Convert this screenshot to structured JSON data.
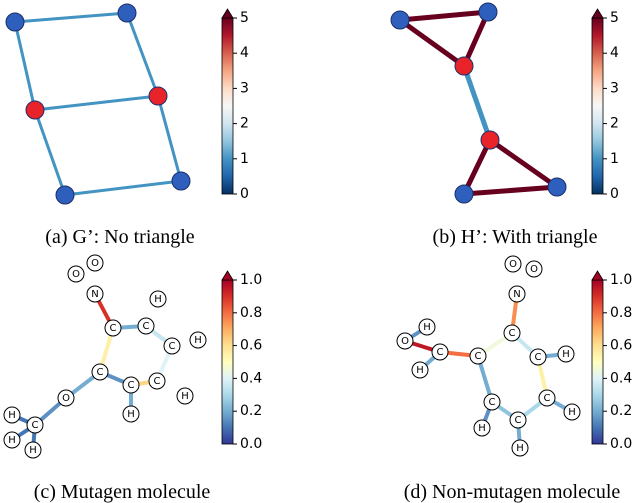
{
  "panels": [
    {
      "caption": "(a) G’: No triangle",
      "colorbar": {
        "range": [
          0,
          5
        ],
        "ticks": [
          0,
          1,
          2,
          3,
          4,
          5
        ],
        "colors": [
          "#053061",
          "#2166ac",
          "#4393c3",
          "#92c5de",
          "#d1e5f0",
          "#f7f7f7",
          "#fddbc7",
          "#f4a582",
          "#d6604d",
          "#b2182b",
          "#67001f"
        ]
      },
      "nodes": [
        {
          "color": "#2f5fbd"
        },
        {
          "color": "#2f5fbd"
        },
        {
          "color": "#e8242a"
        },
        {
          "color": "#e8242a"
        },
        {
          "color": "#2f5fbd"
        },
        {
          "color": "#2f5fbd"
        }
      ],
      "edges": [
        {
          "value": 1
        },
        {
          "value": 1
        },
        {
          "value": 1
        },
        {
          "value": 1
        },
        {
          "value": 1
        },
        {
          "value": 1
        },
        {
          "value": 1
        }
      ]
    },
    {
      "caption": "(b) H’: With triangle",
      "colorbar": {
        "range": [
          0,
          5
        ],
        "ticks": [
          0,
          1,
          2,
          3,
          4,
          5
        ],
        "colors": [
          "#053061",
          "#2166ac",
          "#4393c3",
          "#92c5de",
          "#d1e5f0",
          "#f7f7f7",
          "#fddbc7",
          "#f4a582",
          "#d6604d",
          "#b2182b",
          "#67001f"
        ]
      },
      "nodes": [
        {
          "color": "#2f5fbd"
        },
        {
          "color": "#2f5fbd"
        },
        {
          "color": "#e8242a"
        },
        {
          "color": "#e8242a"
        },
        {
          "color": "#2f5fbd"
        },
        {
          "color": "#2f5fbd"
        }
      ],
      "edges": [
        {
          "value": 5
        },
        {
          "value": 5
        },
        {
          "value": 5
        },
        {
          "value": 1
        },
        {
          "value": 5
        },
        {
          "value": 5
        },
        {
          "value": 5
        }
      ]
    },
    {
      "caption": "(c) Mutagen molecule",
      "colorbar": {
        "range": [
          0,
          1
        ],
        "ticks": [
          {
            "value": 0,
            "label": "0.0"
          },
          {
            "value": 0.2,
            "label": "0.2"
          },
          {
            "value": 0.4,
            "label": "0.4"
          },
          {
            "value": 0.6,
            "label": "0.6"
          },
          {
            "value": 0.8,
            "label": "0.8"
          },
          {
            "value": 1,
            "label": "1.0"
          }
        ],
        "colors": [
          "#313695",
          "#4575b4",
          "#74add1",
          "#abd9e9",
          "#e0f3f8",
          "#ffffbf",
          "#fee090",
          "#fdae61",
          "#f46d43",
          "#d73027",
          "#a50026"
        ]
      },
      "nodes": [
        {
          "label": "O"
        },
        {
          "label": "O"
        },
        {
          "label": "N"
        },
        {
          "label": "C"
        },
        {
          "label": "C"
        },
        {
          "label": "H"
        },
        {
          "label": "C"
        },
        {
          "label": "H"
        },
        {
          "label": "C"
        },
        {
          "label": "C"
        },
        {
          "label": "H"
        },
        {
          "label": "C"
        },
        {
          "label": "H"
        },
        {
          "label": "O"
        },
        {
          "label": "C"
        },
        {
          "label": "H"
        },
        {
          "label": "H"
        },
        {
          "label": "H"
        }
      ],
      "edges": [
        {
          "value": 0.9
        },
        {
          "value": 0.2
        },
        {
          "value": 0.35
        },
        {
          "value": 0.55
        },
        {
          "value": 0.15
        },
        {
          "value": 0.62
        },
        {
          "value": 0.4
        },
        {
          "value": 0.2
        },
        {
          "value": 0.15
        },
        {
          "value": 0.1
        },
        {
          "value": 0.1
        },
        {
          "value": 0.1
        },
        {
          "value": 0.2
        }
      ]
    },
    {
      "caption": "(d) Non-mutagen molecule",
      "colorbar": {
        "range": [
          0,
          1
        ],
        "ticks": [
          {
            "value": 0,
            "label": "0.0"
          },
          {
            "value": 0.2,
            "label": "0.2"
          },
          {
            "value": 0.4,
            "label": "0.4"
          },
          {
            "value": 0.6,
            "label": "0.6"
          },
          {
            "value": 0.8,
            "label": "0.8"
          },
          {
            "value": 1,
            "label": "1.0"
          }
        ],
        "colors": [
          "#313695",
          "#4575b4",
          "#74add1",
          "#abd9e9",
          "#e0f3f8",
          "#ffffbf",
          "#fee090",
          "#fdae61",
          "#f46d43",
          "#d73027",
          "#a50026"
        ]
      },
      "nodes": [
        {
          "label": "O"
        },
        {
          "label": "O"
        },
        {
          "label": "N"
        },
        {
          "label": "C"
        },
        {
          "label": "H"
        },
        {
          "label": "O"
        },
        {
          "label": "H"
        },
        {
          "label": "C"
        },
        {
          "label": "C"
        },
        {
          "label": "C"
        },
        {
          "label": "H"
        },
        {
          "label": "C"
        },
        {
          "label": "H"
        },
        {
          "label": "C"
        },
        {
          "label": "H"
        },
        {
          "label": "C"
        },
        {
          "label": "H"
        }
      ],
      "edges": [
        {
          "value": 0.75
        },
        {
          "value": 0.35
        },
        {
          "value": 0.45
        },
        {
          "value": 0.8
        },
        {
          "value": 0.95
        },
        {
          "value": 0.15
        },
        {
          "value": 0.2
        },
        {
          "value": 0.2
        },
        {
          "value": 0.15
        },
        {
          "value": 0.25
        },
        {
          "value": 0.2
        },
        {
          "value": 0.3
        },
        {
          "value": 0.55
        },
        {
          "value": 0.2
        },
        {
          "value": 0.2
        }
      ]
    }
  ]
}
